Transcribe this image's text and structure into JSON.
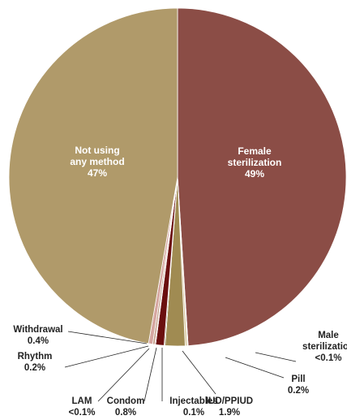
{
  "chart_data": {
    "type": "pie",
    "title": "",
    "slices": [
      {
        "name": "Female sterilization",
        "value": 49,
        "pct": "49%",
        "lines": [
          "Female",
          "sterilization",
          "49%"
        ],
        "color": "#8b4d46",
        "inside": true
      },
      {
        "name": "Male sterilization",
        "value": 0.08,
        "pct": "<0.1%",
        "lines": [
          "Male",
          "sterilization",
          "<0.1%"
        ],
        "color": "#c8b98e",
        "inside": false
      },
      {
        "name": "Pill",
        "value": 0.2,
        "pct": "0.2%",
        "lines": [
          "Pill",
          "0.2%"
        ],
        "color": "#d9c9a1",
        "inside": false
      },
      {
        "name": "IUD/PPIUD",
        "value": 1.9,
        "pct": "1.9%",
        "lines": [
          "IUD/PPIUD",
          "1.9%"
        ],
        "color": "#a08b52",
        "inside": false
      },
      {
        "name": "Injectables",
        "value": 0.1,
        "pct": "0.1%",
        "lines": [
          "Injectables",
          "0.1%"
        ],
        "color": "#7a6a3a",
        "inside": false
      },
      {
        "name": "Condom",
        "value": 0.8,
        "pct": "0.8%",
        "lines": [
          "Condom",
          "0.8%"
        ],
        "color": "#6b0f0f",
        "inside": false
      },
      {
        "name": "LAM",
        "value": 0.08,
        "pct": "<0.1%",
        "lines": [
          "LAM",
          "<0.1%"
        ],
        "color": "#a03030",
        "inside": false
      },
      {
        "name": "Rhythm",
        "value": 0.2,
        "pct": "0.2%",
        "lines": [
          "Rhythm",
          "0.2%"
        ],
        "color": "#c4a08a",
        "inside": false
      },
      {
        "name": "Withdrawal",
        "value": 0.4,
        "pct": "0.4%",
        "lines": [
          "Withdrawal",
          "0.4%"
        ],
        "color": "#d6a6a0",
        "inside": false
      },
      {
        "name": "Not using any method",
        "value": 47.24,
        "pct": "47%",
        "lines": [
          "Not using",
          "any method",
          "47%"
        ],
        "color": "#b09a6a",
        "inside": true
      }
    ]
  }
}
